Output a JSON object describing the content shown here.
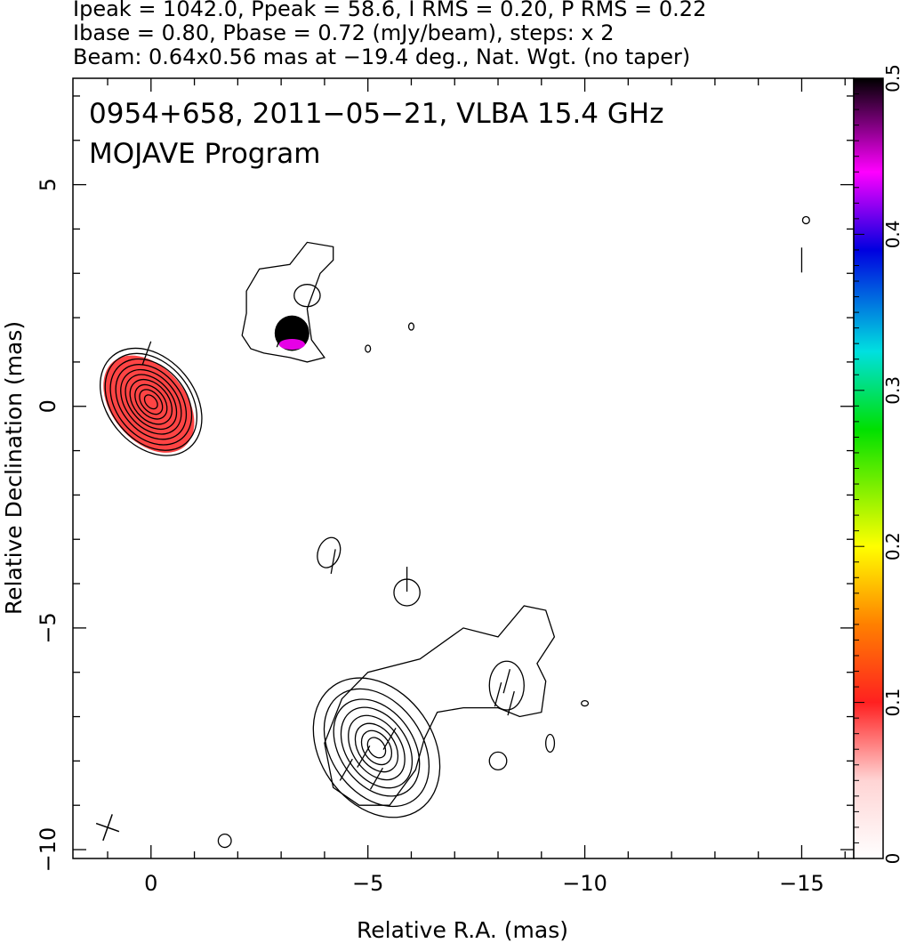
{
  "chart_data": {
    "type": "heatmap",
    "header": {
      "line1": "Ipeak = 1042.0, Ppeak = 58.6, I RMS = 0.20, P RMS = 0.22",
      "line2": "Ibase = 0.80, Pbase = 0.72 (mJy/beam), steps: x 2",
      "line3": "Beam: 0.64x0.56 mas at −19.4 deg., Nat. Wgt. (no taper)"
    },
    "title": "0954+658, 2011−05−21, VLBA 15.4 GHz",
    "subtitle": "MOJAVE Program",
    "xlabel": "Relative R.A. (mas)",
    "ylabel": "Relative Declination (mas)",
    "xlim": [
      1.8,
      -16.2
    ],
    "ylim": [
      -10.2,
      7.4
    ],
    "x_ticks": [
      {
        "value": 0,
        "label": "0"
      },
      {
        "value": -5,
        "label": "−5"
      },
      {
        "value": -10,
        "label": "−10"
      },
      {
        "value": -15,
        "label": "−15"
      }
    ],
    "y_ticks": [
      {
        "value": 5,
        "label": "5"
      },
      {
        "value": 0,
        "label": "0"
      },
      {
        "value": -5,
        "label": "−5"
      },
      {
        "value": -10,
        "label": "−10"
      }
    ],
    "colorbar": {
      "range": [
        0,
        0.5
      ],
      "ticks": [
        {
          "value": 0,
          "label": "0"
        },
        {
          "value": 0.1,
          "label": "0.1"
        },
        {
          "value": 0.2,
          "label": "0.2"
        },
        {
          "value": 0.3,
          "label": "0.3"
        },
        {
          "value": 0.4,
          "label": "0.4"
        },
        {
          "value": 0.5,
          "label": "0.5"
        }
      ],
      "colors": [
        "#ffffff",
        "#ffd4d4",
        "#ff2020",
        "#ff8000",
        "#ffff00",
        "#00e000",
        "#00e0e0",
        "#0000e0",
        "#ff00ff",
        "#000000"
      ]
    },
    "contours": [
      {
        "name": "core",
        "cx": 0.0,
        "cy": 0.1,
        "rx": [
          1.0,
          0.9,
          0.8,
          0.68,
          0.58,
          0.48,
          0.4,
          0.3,
          0.21,
          0.12
        ],
        "ry": [
          1.35,
          1.22,
          1.08,
          0.95,
          0.82,
          0.7,
          0.57,
          0.44,
          0.32,
          0.18
        ],
        "angle": 40
      },
      {
        "name": "extended-north",
        "path": [
          [
            -2.2,
            2.6
          ],
          [
            -2.5,
            3.1
          ],
          [
            -3.2,
            3.2
          ],
          [
            -3.6,
            3.7
          ],
          [
            -4.2,
            3.6
          ],
          [
            -4.2,
            3.3
          ],
          [
            -3.9,
            3.0
          ],
          [
            -3.6,
            2.2
          ],
          [
            -3.7,
            1.5
          ],
          [
            -4.0,
            1.1
          ],
          [
            -3.6,
            1.0
          ],
          [
            -3.2,
            1.1
          ],
          [
            -2.6,
            1.2
          ],
          [
            -2.3,
            1.3
          ],
          [
            -2.1,
            1.6
          ],
          [
            -2.2,
            2.1
          ],
          [
            -2.2,
            2.6
          ]
        ]
      },
      {
        "name": "knot-north",
        "cx": -3.6,
        "cy": 2.5,
        "rx": [
          0.3
        ],
        "ry": [
          0.25
        ],
        "angle": 0
      },
      {
        "name": "blob-1",
        "cx": -4.1,
        "cy": -3.3,
        "rx": [
          0.25
        ],
        "ry": [
          0.35
        ],
        "angle": -20
      },
      {
        "name": "blob-2",
        "cx": -5.9,
        "cy": -4.2,
        "rx": [
          0.3
        ],
        "ry": [
          0.3
        ],
        "angle": 0
      },
      {
        "name": "southwest",
        "cx": -5.2,
        "cy": -7.7,
        "rx": [
          1.3,
          1.05,
          0.85,
          0.7,
          0.55,
          0.42,
          0.3,
          0.18
        ],
        "ry": [
          1.7,
          1.45,
          1.2,
          1.0,
          0.8,
          0.6,
          0.42,
          0.25
        ],
        "angle": 35
      },
      {
        "name": "southwest-envelope",
        "path": [
          [
            -4.0,
            -7.6
          ],
          [
            -4.4,
            -6.6
          ],
          [
            -5.0,
            -6.0
          ],
          [
            -6.2,
            -5.7
          ],
          [
            -7.2,
            -5.0
          ],
          [
            -8.0,
            -5.2
          ],
          [
            -8.6,
            -4.5
          ],
          [
            -9.1,
            -4.6
          ],
          [
            -9.3,
            -5.2
          ],
          [
            -8.9,
            -5.8
          ],
          [
            -9.1,
            -6.2
          ],
          [
            -9.0,
            -6.9
          ],
          [
            -8.5,
            -7.0
          ],
          [
            -8.0,
            -6.8
          ],
          [
            -7.2,
            -6.8
          ],
          [
            -6.6,
            -6.9
          ],
          [
            -6.3,
            -7.5
          ],
          [
            -6.1,
            -8.2
          ],
          [
            -5.5,
            -9.0
          ],
          [
            -4.8,
            -9.0
          ],
          [
            -4.2,
            -8.6
          ],
          [
            -4.0,
            -7.6
          ]
        ]
      },
      {
        "name": "knot-southwest",
        "cx": -8.2,
        "cy": -6.3,
        "rx": [
          0.4
        ],
        "ry": [
          0.55
        ],
        "angle": 0
      },
      {
        "name": "blob-3",
        "cx": -8.0,
        "cy": -8.0,
        "rx": [
          0.2
        ],
        "ry": [
          0.2
        ],
        "angle": 0
      },
      {
        "name": "blob-4",
        "cx": -9.2,
        "cy": -7.6,
        "rx": [
          0.1
        ],
        "ry": [
          0.2
        ],
        "angle": 0
      },
      {
        "name": "blob-5",
        "cx": -1.7,
        "cy": -9.8,
        "rx": [
          0.15
        ],
        "ry": [
          0.15
        ],
        "angle": 0
      },
      {
        "name": "blob-6",
        "cx": -15.1,
        "cy": 4.2,
        "rx": [
          0.08
        ],
        "ry": [
          0.08
        ],
        "angle": 0
      },
      {
        "name": "blob-7",
        "cx": -6.0,
        "cy": 1.8,
        "rx": [
          0.06
        ],
        "ry": [
          0.08
        ],
        "angle": 0
      },
      {
        "name": "blob-8",
        "cx": -5.0,
        "cy": 1.3,
        "rx": [
          0.06
        ],
        "ry": [
          0.08
        ],
        "angle": 0
      },
      {
        "name": "blob-9",
        "cx": -10.0,
        "cy": -6.7,
        "rx": [
          0.08
        ],
        "ry": [
          0.06
        ],
        "angle": 0
      }
    ],
    "polarized_regions": [
      {
        "name": "core-pol",
        "cx": 0.05,
        "cy": 0.05,
        "rx": 0.85,
        "ry": 1.25,
        "angle": 40,
        "value": 0.1
      },
      {
        "name": "north-pol",
        "cx": -3.25,
        "cy": 1.65,
        "rx": 0.4,
        "ry": 0.4,
        "angle": 0,
        "value": 0.5
      },
      {
        "name": "north-pol-edge",
        "cx": -3.25,
        "cy": 1.4,
        "rx": 0.3,
        "ry": 0.12,
        "angle": 0,
        "value": 0.45
      }
    ],
    "evpa_ticks": [
      {
        "x": 0.1,
        "y": 1.2,
        "angle": 70
      },
      {
        "x": -3.0,
        "y": 1.6,
        "angle": 70
      },
      {
        "x": -5.9,
        "y": -3.9,
        "angle": 90
      },
      {
        "x": -8.2,
        "y": -6.2,
        "angle": 75
      },
      {
        "x": -8.0,
        "y": -6.5,
        "angle": 75
      },
      {
        "x": -8.3,
        "y": -6.7,
        "angle": 75
      },
      {
        "x": -5.5,
        "y": -7.5,
        "angle": 60
      },
      {
        "x": -4.9,
        "y": -7.9,
        "angle": 60
      },
      {
        "x": -5.2,
        "y": -8.4,
        "angle": 60
      },
      {
        "x": -4.5,
        "y": -8.2,
        "angle": 60
      },
      {
        "x": -4.2,
        "y": -3.5,
        "angle": 80
      },
      {
        "x": -15.0,
        "y": 3.3,
        "angle": 90
      }
    ],
    "beam": {
      "x": 1.0,
      "y": -9.5,
      "major": 0.64,
      "minor": 0.56,
      "angle": -19.4
    }
  }
}
